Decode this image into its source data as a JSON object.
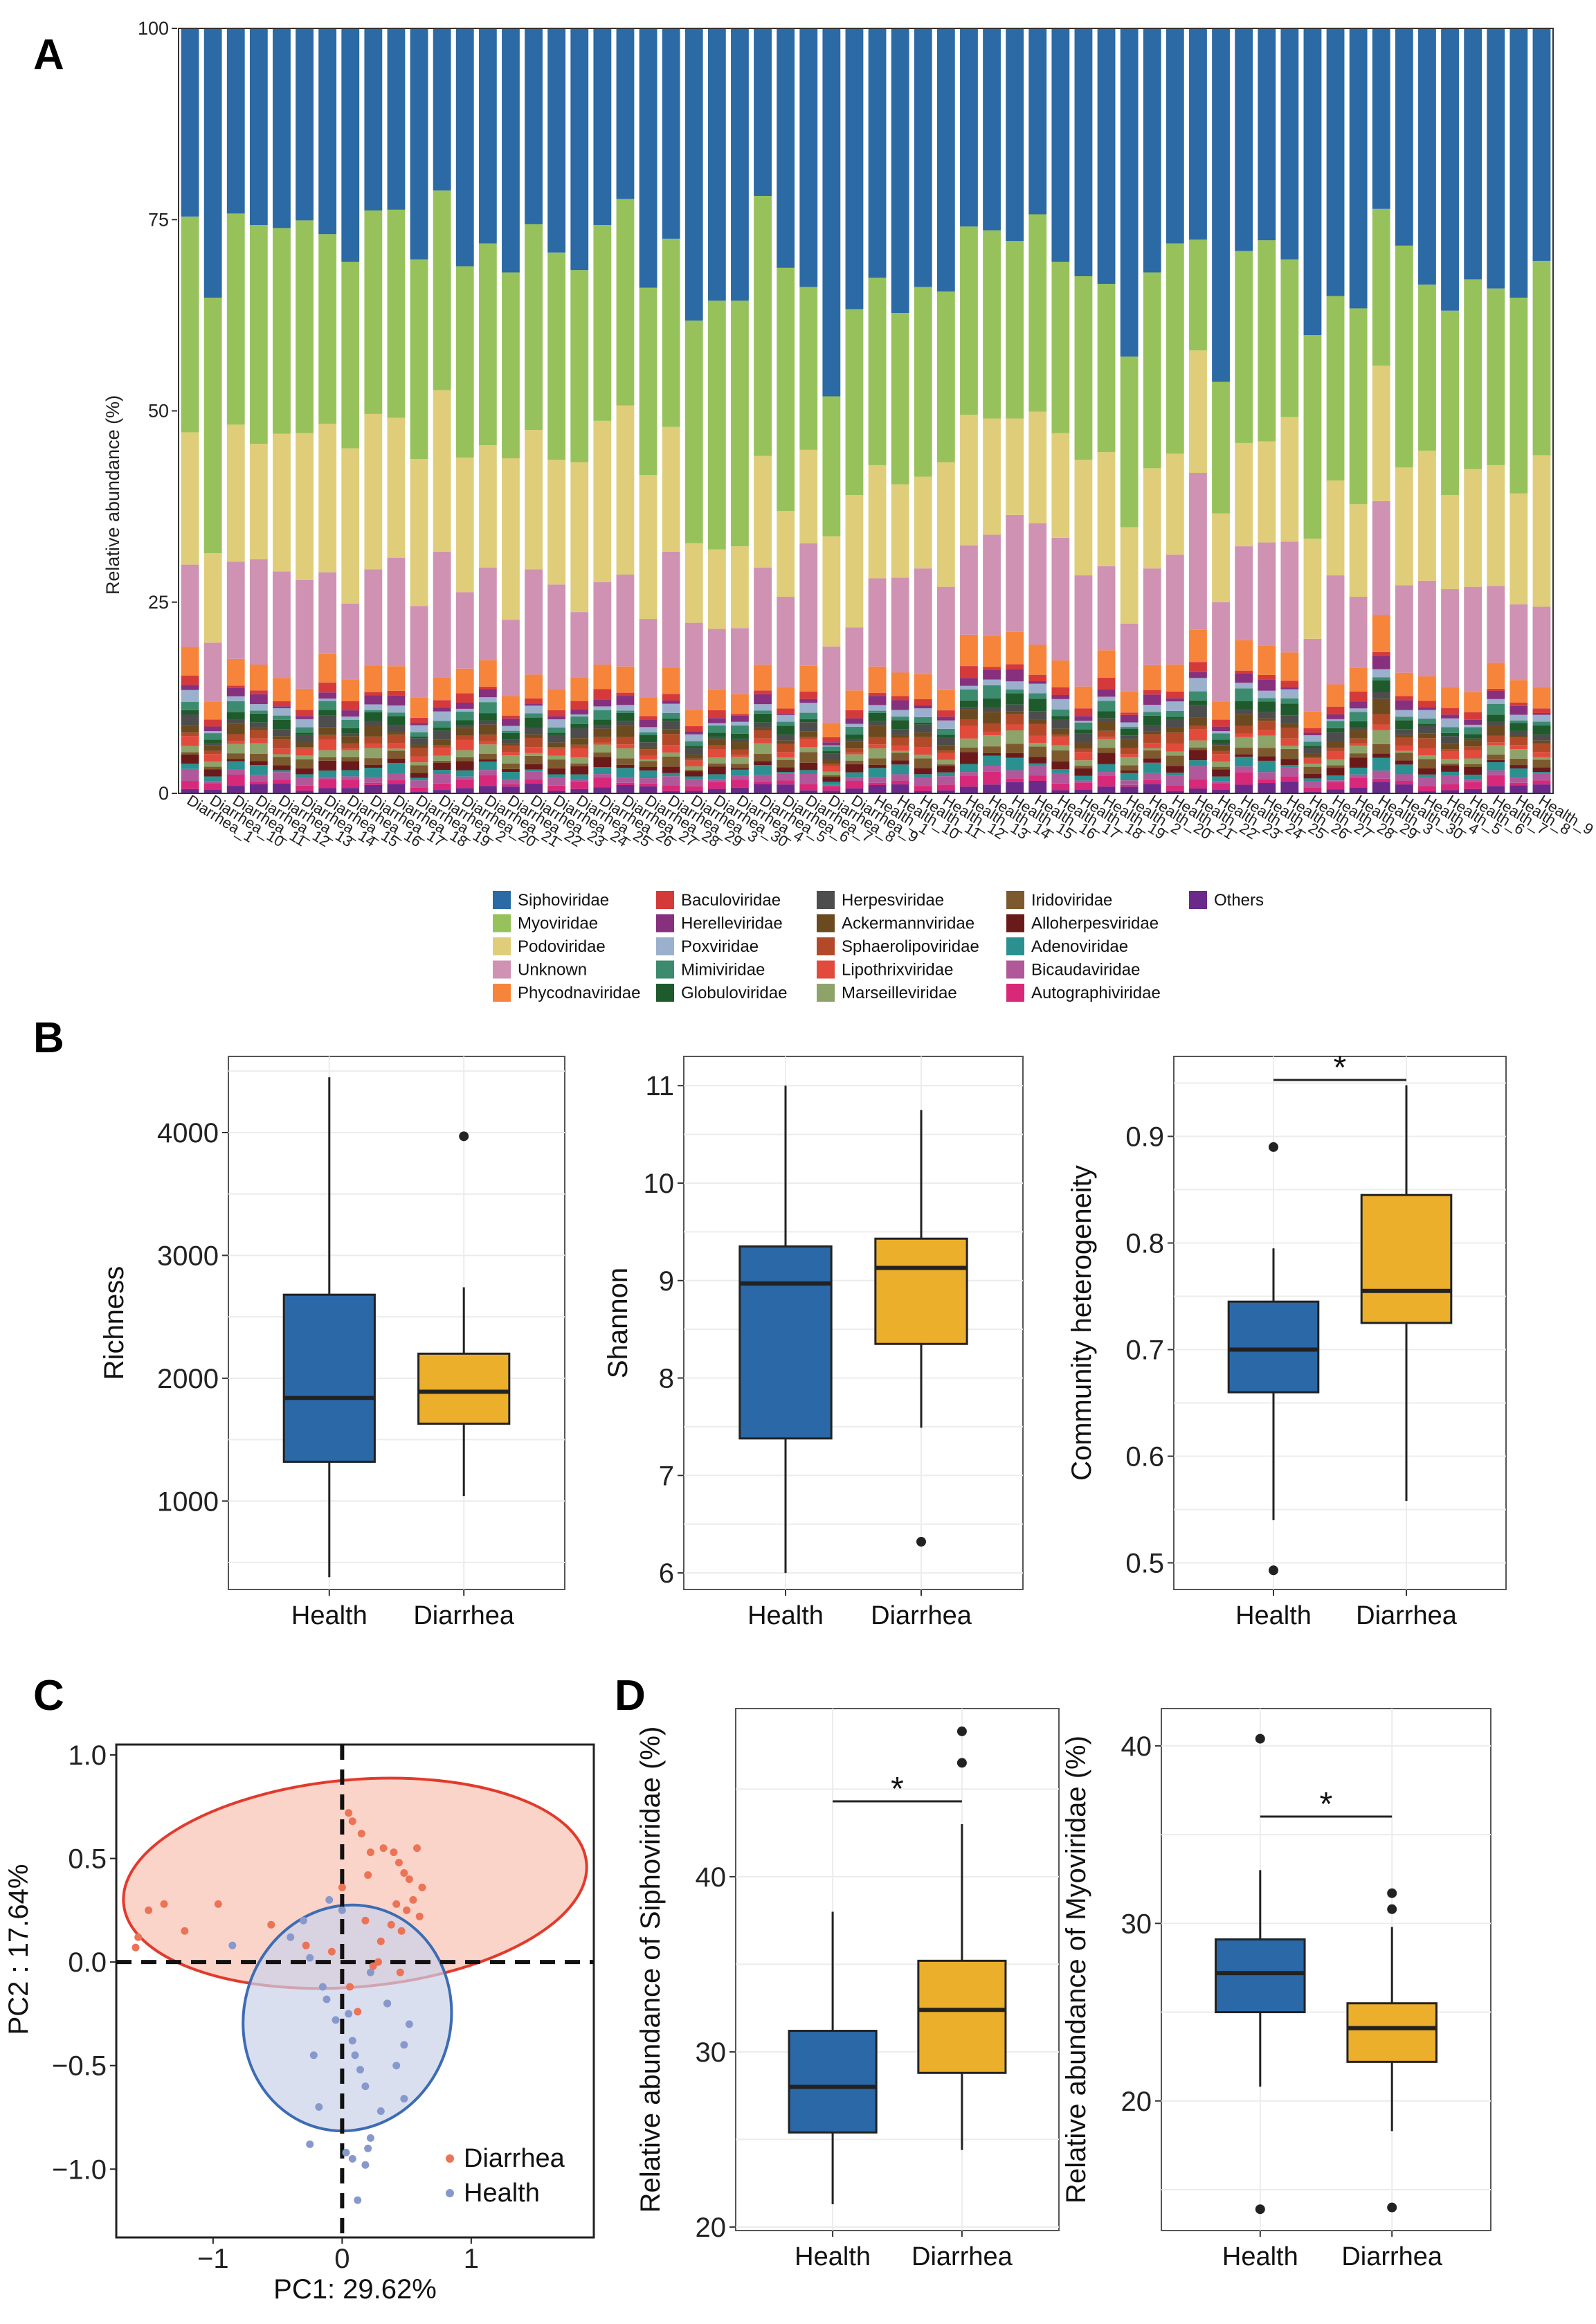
{
  "panel_labels": {
    "a": "A",
    "b": "B",
    "c": "C",
    "d": "D"
  },
  "colors": {
    "health_box": "#2a68a8",
    "diarrhea_box": "#ecaf2b",
    "diarrhea_point": "#ec7355",
    "health_point": "#8799cc",
    "diarrhea_ellipse_fill": "#f9c2b2",
    "diarrhea_ellipse_stroke": "#e23a2c",
    "health_ellipse_fill": "#cbd1ea",
    "health_ellipse_stroke": "#3c6cb4"
  },
  "chart_data": [
    {
      "id": "A",
      "type": "bar",
      "stacked": true,
      "ylabel": "Relative abundance (%)",
      "ylim": [
        0,
        100
      ],
      "yticks": [
        "0",
        "25",
        "50",
        "75",
        "100"
      ],
      "categories": [
        "Diarrhea_1",
        "Diarrhea_10",
        "Diarrhea_11",
        "Diarrhea_12",
        "Diarrhea_13",
        "Diarrhea_14",
        "Diarrhea_15",
        "Diarrhea_16",
        "Diarrhea_17",
        "Diarrhea_18",
        "Diarrhea_19",
        "Diarrhea_2",
        "Diarrhea_20",
        "Diarrhea_21",
        "Diarrhea_22",
        "Diarrhea_23",
        "Diarrhea_24",
        "Diarrhea_25",
        "Diarrhea_26",
        "Diarrhea_27",
        "Diarrhea_28",
        "Diarrhea_29",
        "Diarrhea_3",
        "Diarrhea_30",
        "Diarrhea_4",
        "Diarrhea_5",
        "Diarrhea_6",
        "Diarrhea_7",
        "Diarrhea_8",
        "Diarrhea_9",
        "Health_1",
        "Health_10",
        "Health_11",
        "Health_12",
        "Health_13",
        "Health_14",
        "Health_15",
        "Health_16",
        "Health_17",
        "Health_18",
        "Health_19",
        "Health_2",
        "Health_20",
        "Health_21",
        "Health_22",
        "Health_23",
        "Health_24",
        "Health_25",
        "Health_26",
        "Health_27",
        "Health_28",
        "Health_29",
        "Health_3",
        "Health_30",
        "Health_4",
        "Health_5",
        "Health_6",
        "Health_7",
        "Health_8",
        "Health_9"
      ],
      "legend": [
        {
          "name": "Siphoviridae",
          "color": "#2b6aa4"
        },
        {
          "name": "Myoviridae",
          "color": "#97c25b"
        },
        {
          "name": "Podoviridae",
          "color": "#dfcd7a"
        },
        {
          "name": "Unknown",
          "color": "#cf92b3"
        },
        {
          "name": "Phycodnaviridae",
          "color": "#f7843b"
        },
        {
          "name": "Baculoviridae",
          "color": "#d53a3a"
        },
        {
          "name": "Herelleviridae",
          "color": "#86307e"
        },
        {
          "name": "Poxviridae",
          "color": "#9ab0cc"
        },
        {
          "name": "Mimiviridae",
          "color": "#3c8b6f"
        },
        {
          "name": "Globuloviridae",
          "color": "#1e5a2c"
        },
        {
          "name": "Herpesviridae",
          "color": "#4d4d4d"
        },
        {
          "name": "Ackermannviridae",
          "color": "#6b4a1f"
        },
        {
          "name": "Sphaerolipoviridae",
          "color": "#b24a2a"
        },
        {
          "name": "Lipothrixviridae",
          "color": "#e24b3b"
        },
        {
          "name": "Marseilleviridae",
          "color": "#8ea36a"
        },
        {
          "name": "Iridoviridae",
          "color": "#7c5a2e"
        },
        {
          "name": "Alloherpesviridae",
          "color": "#6b1a1a"
        },
        {
          "name": "Adenoviridae",
          "color": "#2a9090"
        },
        {
          "name": "Bicaudaviridae",
          "color": "#b0589a"
        },
        {
          "name": "Autographiviridae",
          "color": "#d8287a"
        },
        {
          "name": "Others",
          "color": "#6a2a8a"
        }
      ],
      "top_families": {
        "Siphoviridae": [
          24.6,
          35.2,
          24.2,
          25.7,
          26.1,
          25.1,
          26.9,
          30.5,
          23.8,
          23.7,
          30.2,
          21.2,
          31.1,
          28.1,
          31.9,
          25.6,
          29.3,
          31.6,
          25.7,
          22.3,
          33.9,
          27.5,
          38.2,
          35.6,
          35.6,
          21.9,
          31.3,
          33.8,
          48.1,
          36.7,
          32.6,
          37.2,
          33.8,
          34.4,
          25.9,
          26.4,
          27.8,
          24.3,
          30.5,
          32.4,
          33.4,
          42.9,
          31.9,
          28.1,
          27.6,
          46.2,
          29.1,
          27.7,
          30.2,
          40.1,
          35.0,
          36.6,
          23.6,
          28.4,
          33.5,
          36.9,
          32.8,
          34.0,
          35.2,
          30.4
        ],
        "Myoviridae": [
          28.2,
          33.4,
          27.6,
          28.6,
          26.9,
          27.8,
          24.8,
          24.4,
          26.6,
          27.2,
          26.1,
          26.1,
          25.0,
          26.4,
          24.3,
          26.9,
          27.1,
          25.1,
          25.6,
          27.0,
          24.5,
          24.6,
          29.1,
          32.5,
          32.1,
          34.0,
          31.8,
          21.3,
          18.3,
          24.3,
          24.5,
          22.4,
          24.8,
          22.3,
          24.6,
          24.6,
          23.2,
          25.8,
          22.4,
          24.0,
          22.0,
          22.3,
          25.6,
          27.5,
          14.5,
          17.2,
          25.1,
          26.3,
          20.6,
          26.6,
          24.1,
          25.6,
          20.5,
          29.0,
          21.7,
          24.1,
          24.8,
          23.1,
          25.6,
          25.4
        ],
        "Podoviridae": [
          17.3,
          11.7,
          17.9,
          15.1,
          18.0,
          19.2,
          19.4,
          20.3,
          20.3,
          18.3,
          19.2,
          21.1,
          17.6,
          16.0,
          21.1,
          18.2,
          16.3,
          19.6,
          21.1,
          22.1,
          18.8,
          16.3,
          10.4,
          10.4,
          10.7,
          14.6,
          11.2,
          12.2,
          14.4,
          17.3,
          14.8,
          12.2,
          12.0,
          16.3,
          17.1,
          15.2,
          12.6,
          14.6,
          13.7,
          15.1,
          14.9,
          12.6,
          13.1,
          13.2,
          16.0,
          11.6,
          13.5,
          13.2,
          16.3,
          13.1,
          12.4,
          12.1,
          17.7,
          15.4,
          17.0,
          12.3,
          15.4,
          15.8,
          14.5,
          19.8
        ]
      }
    },
    {
      "id": "B-richness",
      "type": "box",
      "ylabel": "Richness",
      "categories": [
        "Health",
        "Diarrhea"
      ],
      "yticks": [
        "1000",
        "2000",
        "3000",
        "4000"
      ],
      "ylim": [
        280,
        4620
      ],
      "boxes": [
        {
          "group": "Health",
          "whisker_low": 380,
          "q1": 1320,
          "median": 1840,
          "q3": 2680,
          "whisker_high": 4450,
          "outliers": []
        },
        {
          "group": "Diarrhea",
          "whisker_low": 1040,
          "q1": 1630,
          "median": 1890,
          "q3": 2200,
          "whisker_high": 2740,
          "outliers": [
            3970
          ]
        }
      ]
    },
    {
      "id": "B-shannon",
      "type": "box",
      "ylabel": "Shannon",
      "categories": [
        "Health",
        "Diarrhea"
      ],
      "yticks": [
        "6",
        "7",
        "8",
        "9",
        "10",
        "11"
      ],
      "ylim": [
        5.83,
        11.3
      ],
      "boxes": [
        {
          "group": "Health",
          "whisker_low": 6.0,
          "q1": 7.38,
          "median": 8.97,
          "q3": 9.35,
          "whisker_high": 11.0,
          "outliers": []
        },
        {
          "group": "Diarrhea",
          "whisker_low": 7.49,
          "q1": 8.35,
          "median": 9.13,
          "q3": 9.43,
          "whisker_high": 10.75,
          "outliers": [
            6.32
          ]
        }
      ]
    },
    {
      "id": "B-heterogeneity",
      "type": "box",
      "ylabel": "Community heterogeneity",
      "categories": [
        "Health",
        "Diarrhea"
      ],
      "yticks": [
        "0.5",
        "0.6",
        "0.7",
        "0.8",
        "0.9"
      ],
      "ylim": [
        0.475,
        0.975
      ],
      "significance": "*",
      "boxes": [
        {
          "group": "Health",
          "whisker_low": 0.54,
          "q1": 0.66,
          "median": 0.7,
          "q3": 0.745,
          "whisker_high": 0.795,
          "outliers": [
            0.89,
            0.493
          ]
        },
        {
          "group": "Diarrhea",
          "whisker_low": 0.558,
          "q1": 0.725,
          "median": 0.755,
          "q3": 0.845,
          "whisker_high": 0.948,
          "outliers": []
        }
      ]
    },
    {
      "id": "C",
      "type": "scatter",
      "xlabel": "PC1: 29.62%",
      "ylabel": "PC2 :  17.64%",
      "xlim": [
        -1.75,
        1.95
      ],
      "ylim": [
        -1.33,
        1.05
      ],
      "xticks": [
        "−1",
        "0",
        "1"
      ],
      "yticks": [
        "−1.0",
        "−0.5",
        "0.0",
        "0.5",
        "1.0"
      ],
      "legend": [
        "Diarrhea",
        "Health"
      ],
      "ellipses": [
        {
          "group": "Diarrhea",
          "center": [
            0.1,
            0.38
          ],
          "rx": 1.8,
          "ry": 0.5,
          "angle": -5
        },
        {
          "group": "Health",
          "center": [
            0.04,
            -0.27
          ],
          "rx": 0.88,
          "ry": 0.5,
          "angle": -75
        }
      ],
      "series": [
        {
          "name": "Diarrhea",
          "x": [
            -1.5,
            -1.38,
            -1.58,
            -1.6,
            -1.22,
            -0.96,
            -0.55,
            -0.28,
            0.05,
            0.08,
            0.15,
            0.22,
            0.32,
            0.4,
            0.44,
            0.48,
            0.52,
            0.58,
            0.62,
            0.55,
            0.5,
            0.46,
            0.38,
            0.3,
            0.18,
            0.24,
            0.12,
            0.06,
            0.35,
            0.45,
            0.2,
            0.6,
            0.42,
            -0.08,
            0.28,
            0.0
          ],
          "y": [
            0.25,
            0.28,
            0.12,
            0.07,
            0.15,
            0.28,
            0.18,
            0.08,
            0.72,
            0.68,
            0.62,
            0.53,
            0.55,
            0.53,
            0.48,
            0.43,
            0.4,
            0.55,
            0.36,
            0.3,
            0.25,
            0.15,
            0.18,
            0.1,
            0.2,
            -0.02,
            -0.24,
            -0.12,
            -0.2,
            -0.05,
            0.42,
            0.22,
            0.28,
            0.05,
            0.0,
            0.36
          ]
        },
        {
          "name": "Health",
          "x": [
            -0.1,
            0.0,
            -0.3,
            -0.85,
            -0.25,
            -0.15,
            -0.12,
            -0.05,
            0.05,
            0.08,
            0.1,
            0.14,
            0.18,
            0.22,
            0.3,
            0.42,
            0.48,
            0.52,
            -0.18,
            -0.25,
            0.03,
            0.08,
            0.18,
            0.2,
            0.12,
            -0.4,
            0.22,
            -0.22,
            0.48,
            0.35
          ],
          "y": [
            0.3,
            0.25,
            0.2,
            0.08,
            0.02,
            -0.12,
            -0.18,
            -0.28,
            -0.25,
            -0.38,
            -0.45,
            -0.52,
            -0.6,
            -0.85,
            -0.72,
            -0.5,
            -0.4,
            -0.3,
            -0.7,
            -0.88,
            -0.92,
            -0.95,
            -0.98,
            -0.9,
            -1.15,
            0.12,
            -0.05,
            -0.45,
            -0.66,
            -0.2
          ]
        }
      ]
    },
    {
      "id": "D-siphoviridae",
      "type": "box",
      "ylabel": "Relative abundance of Siphoviridae (%)",
      "categories": [
        "Health",
        "Diarrhea"
      ],
      "yticks": [
        "20",
        "30",
        "40"
      ],
      "ylim": [
        19.8,
        49.6
      ],
      "significance": "*",
      "boxes": [
        {
          "group": "Health",
          "whisker_low": 21.3,
          "q1": 25.4,
          "median": 28.0,
          "q3": 31.2,
          "whisker_high": 38.0,
          "outliers": []
        },
        {
          "group": "Diarrhea",
          "whisker_low": 24.4,
          "q1": 28.8,
          "median": 32.4,
          "q3": 35.2,
          "whisker_high": 43.0,
          "outliers": [
            46.5,
            48.3
          ]
        }
      ]
    },
    {
      "id": "D-myoviridae",
      "type": "box",
      "ylabel": "Relative abundance of Myoviridae (%)",
      "categories": [
        "Health",
        "Diarrhea"
      ],
      "yticks": [
        "20",
        "30",
        "40"
      ],
      "ylim": [
        12.7,
        42.1
      ],
      "significance": "*",
      "boxes": [
        {
          "group": "Health",
          "whisker_low": 20.8,
          "q1": 25.0,
          "median": 27.2,
          "q3": 29.1,
          "whisker_high": 33.0,
          "outliers": [
            40.4,
            13.9
          ]
        },
        {
          "group": "Diarrhea",
          "whisker_low": 18.3,
          "q1": 22.2,
          "median": 24.1,
          "q3": 25.5,
          "whisker_high": 29.8,
          "outliers": [
            30.8,
            31.7,
            14.0
          ]
        }
      ]
    }
  ]
}
